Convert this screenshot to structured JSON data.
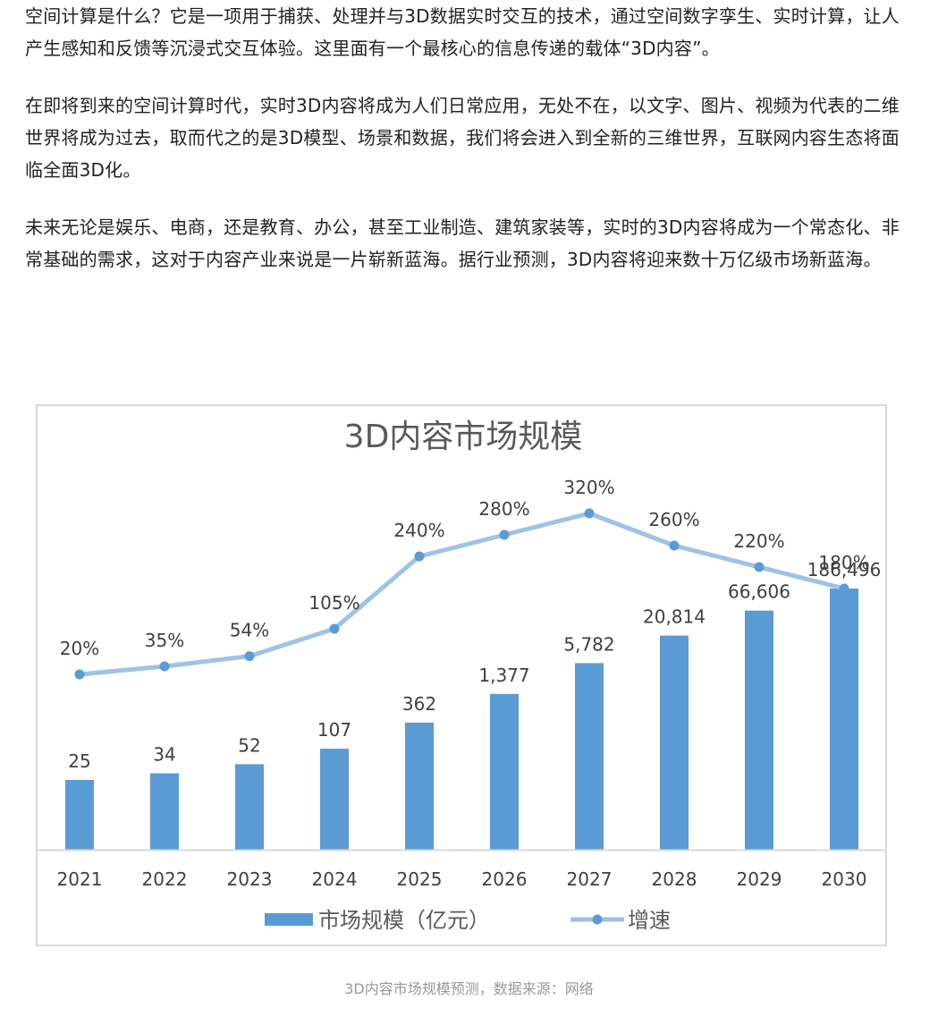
{
  "article": {
    "paragraphs": [
      "空间计算是什么？它是一项用于捕获、处理并与3D数据实时交互的技术，通过空间数字孪生、实时计算，让人产生感知和反馈等沉浸式交互体验。这里面有一个最核心的信息传递的载体“3D内容”。",
      "在即将到来的空间计算时代，实时3D内容将成为人们日常应用，无处不在，以文字、图片、视频为代表的二维世界将成为过去，取而代之的是3D模型、场景和数据，我们将会进入到全新的三维世界，互联网内容生态将面临全面3D化。",
      "未来无论是娱乐、电商，还是教育、办公，甚至工业制造、建筑家装等，实时的3D内容将成为一个常态化、非常基础的需求，这对于内容产业来说是一片崭新蓝海。据行业预测，3D内容将迎来数十万亿级市场新蓝海。"
    ]
  },
  "caption": "3D内容市场规模预测，数据来源：网络",
  "colors": {
    "bar": "#5b9bd5",
    "line": "#9dc3e6",
    "text": "#404040",
    "axis": "#d9d9d9"
  },
  "chart_data": {
    "type": "bar",
    "title": "3D内容市场规模",
    "xlabel": "",
    "ylabel": "",
    "categories": [
      "2021",
      "2022",
      "2023",
      "2024",
      "2025",
      "2026",
      "2027",
      "2028",
      "2029",
      "2030"
    ],
    "series": [
      {
        "name": "市场规模（亿元）",
        "type": "bar",
        "values": [
          25,
          34,
          52,
          107,
          362,
          1377,
          5782,
          20814,
          66606,
          186496
        ],
        "labels": [
          "25",
          "34",
          "52",
          "107",
          "362",
          "1,377",
          "5,782",
          "20,814",
          "66,606",
          "186,496"
        ]
      },
      {
        "name": "增速",
        "type": "line",
        "values": [
          20,
          35,
          54,
          105,
          240,
          280,
          320,
          260,
          220,
          180
        ],
        "labels": [
          "20%",
          "35%",
          "54%",
          "105%",
          "240%",
          "280%",
          "320%",
          "260%",
          "220%",
          "180%"
        ]
      }
    ],
    "grid": false,
    "legend": "bottom"
  }
}
